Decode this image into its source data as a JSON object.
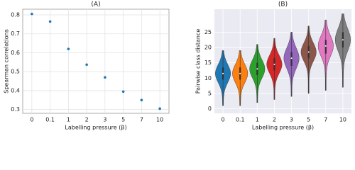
{
  "chart_data": [
    {
      "type": "scatter",
      "title": "(A)",
      "x_label": "Labelling pressure (β)",
      "y_label": "Spearman correlations",
      "categories": [
        "0",
        "0.1",
        "1",
        "2",
        "3",
        "5",
        "7",
        "10"
      ],
      "values": [
        0.805,
        0.765,
        0.62,
        0.537,
        0.47,
        0.395,
        0.35,
        0.305
      ],
      "color": "#1f77b4",
      "ylim": [
        0.28,
        0.83
      ],
      "yticks": [
        0.3,
        0.4,
        0.5,
        0.6,
        0.7,
        0.8
      ],
      "grid": true,
      "background": "#ffffff",
      "grid_color": "#e3e3e3"
    },
    {
      "type": "violin",
      "title": "(B)",
      "x_label": "Labelling pressure (β)",
      "y_label": "Pairwise class distance",
      "categories": [
        "0",
        "0.1",
        "1",
        "2",
        "3",
        "5",
        "7",
        "10"
      ],
      "violins": [
        {
          "min": 1,
          "q1": 9.5,
          "median": 11.5,
          "q3": 13.5,
          "max": 19,
          "color": "#1f77b4"
        },
        {
          "min": 1,
          "q1": 9.5,
          "median": 11.5,
          "q3": 13.5,
          "max": 19,
          "color": "#ff7f0e"
        },
        {
          "min": 2,
          "q1": 11,
          "median": 13,
          "q3": 15,
          "max": 21,
          "color": "#2ca02c"
        },
        {
          "min": 3,
          "q1": 12.5,
          "median": 14.5,
          "q3": 16.5,
          "max": 23,
          "color": "#d62728"
        },
        {
          "min": 4,
          "q1": 14,
          "median": 16.5,
          "q3": 18.5,
          "max": 25,
          "color": "#9467bd"
        },
        {
          "min": 5,
          "q1": 16.5,
          "median": 18.5,
          "q3": 20.5,
          "max": 27,
          "color": "#8c564b"
        },
        {
          "min": 6,
          "q1": 18,
          "median": 20.5,
          "q3": 22.5,
          "max": 29,
          "color": "#e377c2"
        },
        {
          "min": 7,
          "q1": 20,
          "median": 22.5,
          "q3": 25,
          "max": 31,
          "color": "#7f7f7f"
        }
      ],
      "ylim": [
        -1.5,
        32.5
      ],
      "yticks": [
        0,
        5,
        10,
        15,
        20,
        25
      ],
      "grid": true,
      "background": "#eaeaf2",
      "grid_color": "#ffffff"
    }
  ]
}
